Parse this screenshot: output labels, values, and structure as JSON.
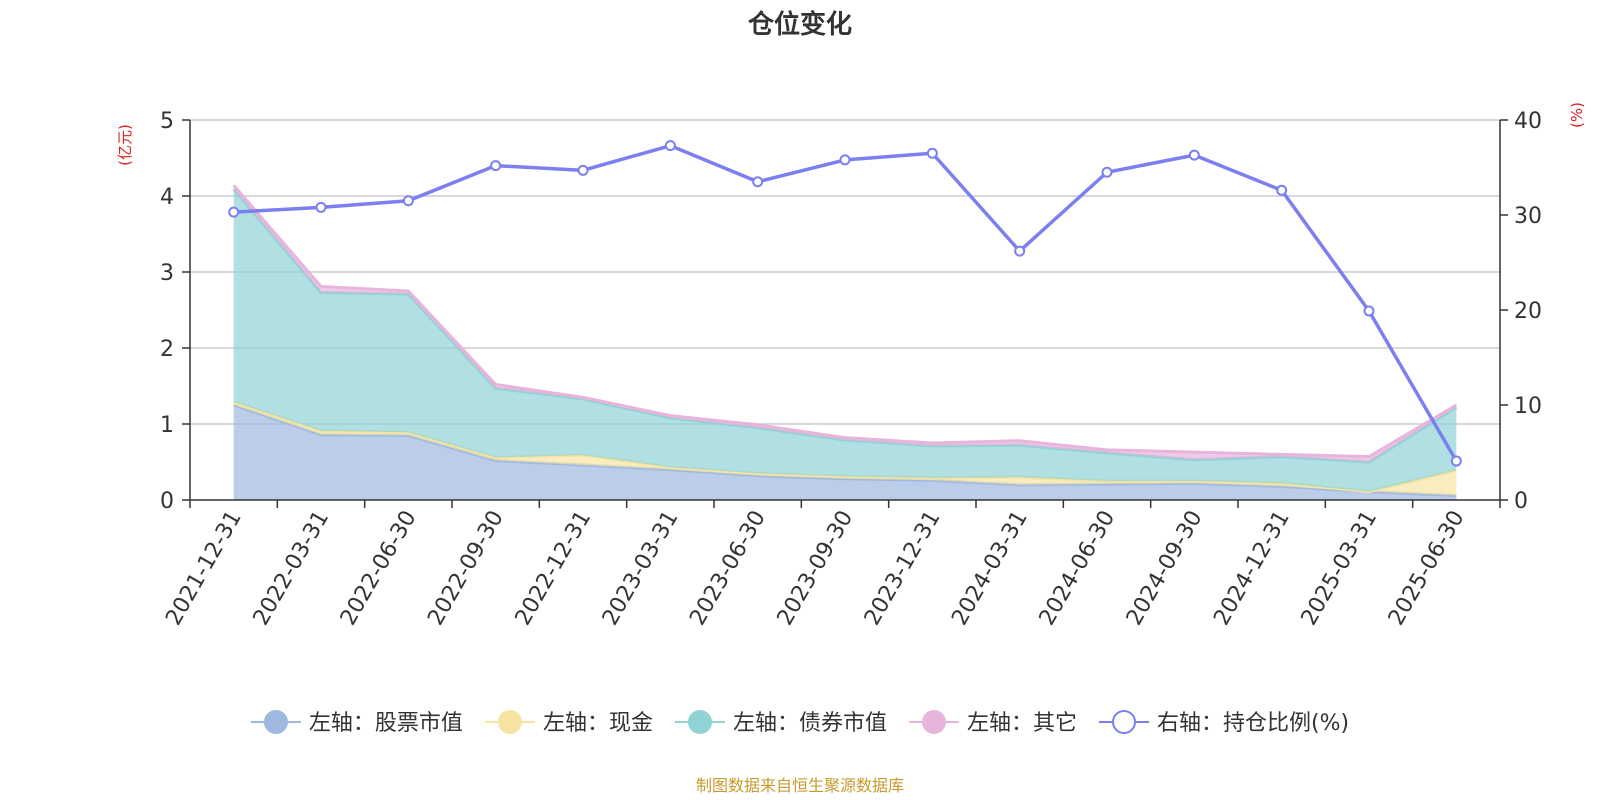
{
  "chart_title": "仓位变化",
  "source_text": "制图数据来自恒生聚源数据库",
  "chart_data": {
    "type": "area",
    "title": "仓位变化",
    "categories": [
      "2021-12-31",
      "2022-03-31",
      "2022-06-30",
      "2022-09-30",
      "2022-12-31",
      "2023-03-31",
      "2023-06-30",
      "2023-09-30",
      "2023-12-31",
      "2024-03-31",
      "2024-06-30",
      "2024-09-30",
      "2024-12-31",
      "2025-03-31",
      "2025-06-30"
    ],
    "left_axis": {
      "label": "(亿元)",
      "ylim": [
        0,
        5
      ],
      "ticks": [
        "0",
        "1",
        "2",
        "3",
        "4",
        "5"
      ]
    },
    "right_axis": {
      "label": "(%)",
      "ylim": [
        0,
        40
      ],
      "ticks": [
        "0",
        "10",
        "20",
        "30",
        "40"
      ]
    },
    "stacked_series": [
      {
        "name": "左轴：股票市值",
        "color": "#9fb8e0",
        "values": [
          1.25,
          0.86,
          0.85,
          0.52,
          0.46,
          0.4,
          0.32,
          0.28,
          0.26,
          0.2,
          0.21,
          0.22,
          0.18,
          0.11,
          0.06
        ]
      },
      {
        "name": "左轴：现金",
        "color": "#f6e4a3",
        "values": [
          0.04,
          0.05,
          0.04,
          0.04,
          0.13,
          0.03,
          0.03,
          0.03,
          0.03,
          0.1,
          0.04,
          0.03,
          0.04,
          0.0,
          0.33
        ]
      },
      {
        "name": "左轴：债券市值",
        "color": "#8fd3d4",
        "values": [
          2.8,
          1.82,
          1.82,
          0.91,
          0.74,
          0.65,
          0.6,
          0.48,
          0.42,
          0.42,
          0.37,
          0.28,
          0.35,
          0.39,
          0.83
        ]
      },
      {
        "name": "左轴：其它",
        "color": "#e8b4dc",
        "values": [
          0.05,
          0.08,
          0.04,
          0.05,
          0.02,
          0.03,
          0.04,
          0.03,
          0.04,
          0.06,
          0.04,
          0.1,
          0.03,
          0.07,
          0.03
        ]
      }
    ],
    "line_series": {
      "name": "右轴：持仓比例(%)",
      "color": "#7b7ff0",
      "values": [
        30.3,
        30.8,
        31.5,
        35.2,
        34.7,
        37.3,
        33.5,
        35.8,
        36.5,
        26.2,
        34.5,
        36.3,
        32.6,
        19.9,
        4.1
      ]
    },
    "grid": true,
    "legend_position": "bottom"
  }
}
